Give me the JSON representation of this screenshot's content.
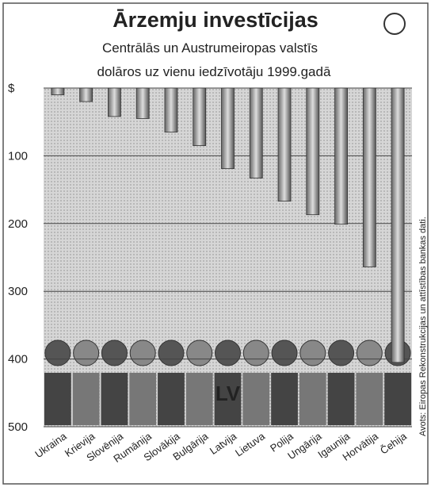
{
  "chart_data": {
    "type": "bar",
    "title": "Ārzemju investīcijas",
    "subtitle": [
      "Centrālās un Austrumeiropas valstīs",
      "dolāros uz vienu iedzīvotāju 1999.gadā"
    ],
    "source": "Avots: Eiropas Rekonstrukcijas un attīstības bankas dati.",
    "annotation": "LV",
    "categories": [
      "Ukraina",
      "Krievija",
      "Slovēnija",
      "Rumānija",
      "Slovākija",
      "Bulgārija",
      "Latvija",
      "Lietuva",
      "Polija",
      "Ungārija",
      "Igaunija",
      "Horvātija",
      "Čehija"
    ],
    "values": [
      10,
      20,
      42,
      45,
      65,
      85,
      119,
      133,
      167,
      187,
      201,
      264,
      405
    ],
    "color": "#9a9a9a",
    "ylim": [
      0,
      500
    ],
    "y_inverted": true,
    "yticks": [
      {
        "value": 0,
        "label": "$"
      },
      100,
      200,
      300,
      400,
      500
    ],
    "grid": true
  }
}
